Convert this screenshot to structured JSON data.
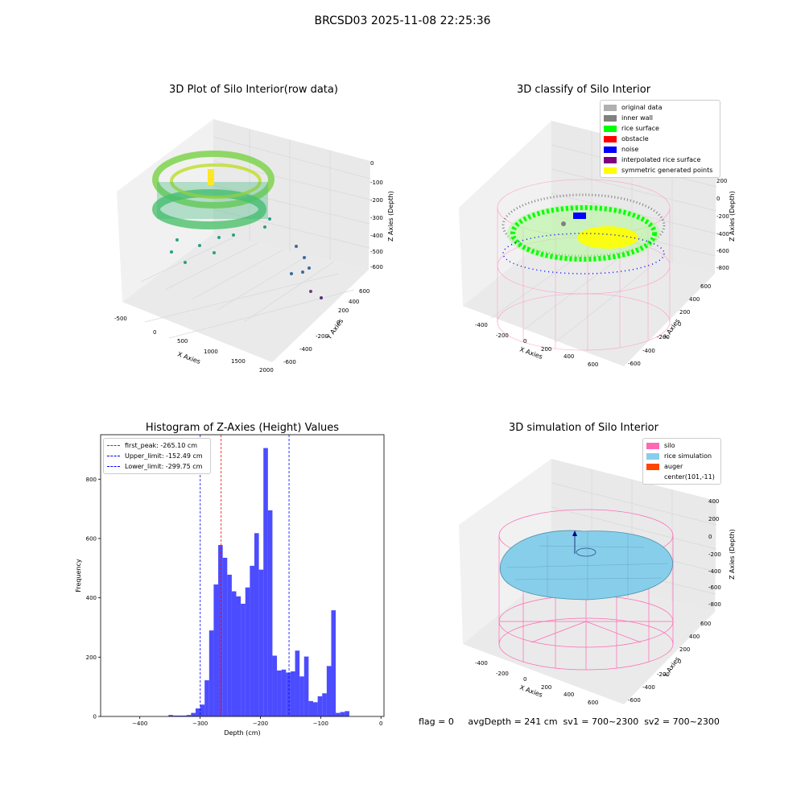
{
  "figure": {
    "suptitle": "BRCSD03 2025-11-08 22:25:36",
    "status_text": "flag = 0     avgDepth = 241 cm  sv1 = 700~2300  sv2 = 700~2300"
  },
  "chart_data": [
    {
      "type": "scatter",
      "title": "3D Plot of Silo Interior(row data)",
      "xlabel": "X Axies",
      "ylabel": "Y Axies",
      "zlabel": "Z Axies (Depth)",
      "xticks": [
        -500,
        0,
        500,
        1000,
        1500,
        2000
      ],
      "yticks": [
        -600,
        -400,
        -200,
        0,
        200,
        400,
        600
      ],
      "zticks": [
        0,
        -100,
        -200,
        -300,
        -400,
        -500,
        -600
      ],
      "colormap": "viridis"
    },
    {
      "type": "scatter",
      "title": "3D classify of Silo Interior",
      "xlabel": "X Axies",
      "ylabel": "Y Axies",
      "zlabel": "Z Axies (Depth)",
      "xticks": [
        -400,
        -200,
        0,
        200,
        400,
        600
      ],
      "yticks": [
        -600,
        -400,
        -200,
        0,
        200,
        400,
        600
      ],
      "zticks": [
        200,
        0,
        -200,
        -400,
        -600,
        -800
      ],
      "legend": [
        {
          "label": "original data",
          "color": "#b0b0b0"
        },
        {
          "label": "inner wall",
          "color": "#808080"
        },
        {
          "label": "rice surface",
          "color": "#00ff00"
        },
        {
          "label": "obstacle",
          "color": "#ff0000"
        },
        {
          "label": "noise",
          "color": "#0000ff"
        },
        {
          "label": "interpolated rice surface",
          "color": "#800080"
        },
        {
          "label": "symmetric generated points",
          "color": "#ffff00"
        }
      ]
    },
    {
      "type": "bar",
      "title": "Histogram of Z-Axies (Height) Values",
      "xlabel": "Depth (cm)",
      "ylabel": "Frequency",
      "xlim": [
        -465,
        5
      ],
      "ylim": [
        0,
        950
      ],
      "xticks": [
        -400,
        -300,
        -200,
        -100,
        0
      ],
      "yticks": [
        0,
        200,
        400,
        600,
        800
      ],
      "bar_color": "#0000ff",
      "bin_width": 7.5,
      "bins": [
        [
          -352.5,
          5
        ],
        [
          -345,
          3
        ],
        [
          -337.5,
          3
        ],
        [
          -330,
          3
        ],
        [
          -322.5,
          5
        ],
        [
          -315,
          12
        ],
        [
          -307.5,
          27
        ],
        [
          -300,
          40
        ],
        [
          -292.5,
          122
        ],
        [
          -285,
          290
        ],
        [
          -277.5,
          445
        ],
        [
          -270,
          578
        ],
        [
          -262.5,
          535
        ],
        [
          -255,
          478
        ],
        [
          -247.5,
          422
        ],
        [
          -240,
          405
        ],
        [
          -232.5,
          380
        ],
        [
          -225,
          435
        ],
        [
          -217.5,
          508
        ],
        [
          -210,
          618
        ],
        [
          -202.5,
          495
        ],
        [
          -195,
          905
        ],
        [
          -187.5,
          695
        ],
        [
          -180,
          205
        ],
        [
          -172.5,
          155
        ],
        [
          -165,
          158
        ],
        [
          -157.5,
          148
        ],
        [
          -150,
          152
        ],
        [
          -142.5,
          222
        ],
        [
          -135,
          135
        ],
        [
          -127.5,
          202
        ],
        [
          -120,
          52
        ],
        [
          -112.5,
          48
        ],
        [
          -105,
          68
        ],
        [
          -97.5,
          78
        ],
        [
          -90,
          170
        ],
        [
          -82.5,
          358
        ],
        [
          -75,
          12
        ],
        [
          -67.5,
          15
        ],
        [
          -60,
          18
        ]
      ],
      "vlines": [
        {
          "label": "first_peak: -265.10 cm",
          "x": -265.1,
          "color": "#ff0000"
        },
        {
          "label": "Upper_limit: -152.49 cm",
          "x": -152.49,
          "color": "#0000ff"
        },
        {
          "label": "Lower_limit: -299.75 cm",
          "x": -299.75,
          "color": "#0000ff"
        }
      ]
    },
    {
      "type": "surface",
      "title": "3D simulation of Silo Interior",
      "xlabel": "X Axies",
      "ylabel": "Y Axies",
      "zlabel": "Z Axies (Depth)",
      "xticks": [
        -400,
        -200,
        0,
        200,
        400,
        600
      ],
      "yticks": [
        -600,
        -400,
        -200,
        0,
        200,
        400,
        600
      ],
      "zticks": [
        400,
        200,
        0,
        -200,
        -400,
        -600,
        -800
      ],
      "legend": [
        {
          "label": "silo",
          "color": "#ff69b4"
        },
        {
          "label": "rice simulation",
          "color": "#87ceeb"
        },
        {
          "label": "auger",
          "color": "#ff4500"
        },
        {
          "label": "center(101,-11)",
          "color": ""
        }
      ]
    }
  ]
}
